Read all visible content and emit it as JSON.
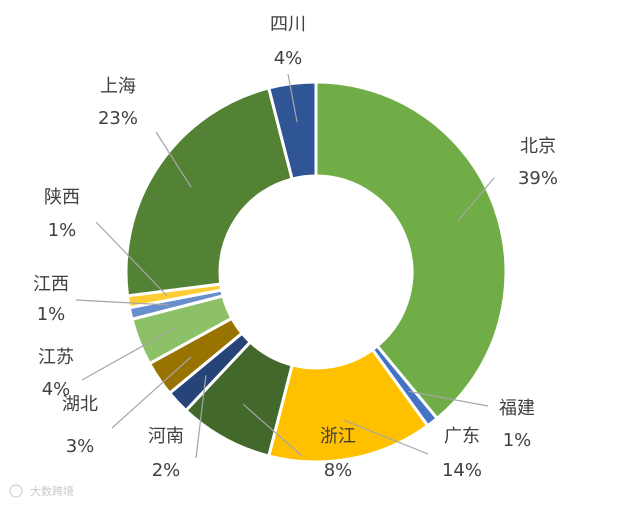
{
  "chart_data": {
    "type": "donut",
    "title": "",
    "slices": [
      {
        "name": "北京",
        "value": 39,
        "value_label": "39%",
        "color": "#70ad47"
      },
      {
        "name": "福建",
        "value": 1,
        "value_label": "1%",
        "color": "#4472c4"
      },
      {
        "name": "广东",
        "value": 14,
        "value_label": "14%",
        "color": "#ffc000"
      },
      {
        "name": "浙江",
        "value": 8,
        "value_label": "8%",
        "color": "#43682b"
      },
      {
        "name": "河南",
        "value": 2,
        "value_label": "2%",
        "color": "#264478"
      },
      {
        "name": "湖北",
        "value": 3,
        "value_label": "3%",
        "color": "#997300"
      },
      {
        "name": "江苏",
        "value": 4,
        "value_label": "4%",
        "color": "#8cc168"
      },
      {
        "name": "江西",
        "value": 1,
        "value_label": "1%",
        "color": "#698ed0"
      },
      {
        "name": "陕西",
        "value": 1,
        "value_label": "1%",
        "color": "#ffcd33"
      },
      {
        "name": "上海",
        "value": 23,
        "value_label": "23%",
        "color": "#548235"
      },
      {
        "name": "四川",
        "value": 4,
        "value_label": "4%",
        "color": "#2f5597"
      }
    ]
  },
  "watermark": "大数跨境"
}
